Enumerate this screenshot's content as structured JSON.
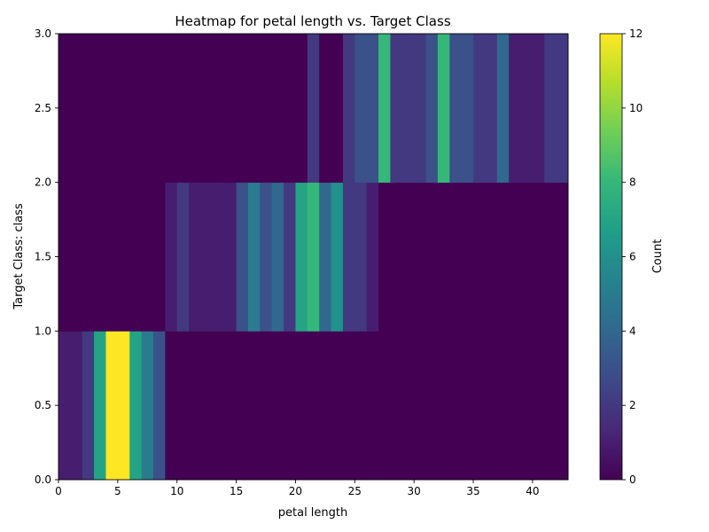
{
  "chart_data": {
    "type": "heatmap",
    "title": "Heatmap for petal length vs. Target Class",
    "xlabel": "petal length",
    "ylabel": "Target Class: class",
    "xlim": [
      0,
      43
    ],
    "ylim": [
      0,
      3
    ],
    "x_ticks": [
      "0",
      "5",
      "10",
      "15",
      "20",
      "25",
      "30",
      "35",
      "40"
    ],
    "y_ticks": [
      "0.0",
      "0.5",
      "1.0",
      "1.5",
      "2.0",
      "2.5",
      "3.0"
    ],
    "x_bin_width": 1,
    "y_bins": [
      [
        0,
        1
      ],
      [
        1,
        2
      ],
      [
        2,
        3
      ]
    ],
    "colormap": "viridis",
    "colormap_stops": [
      "#440154",
      "#482878",
      "#3e4989",
      "#31688e",
      "#26828e",
      "#1f9e89",
      "#35b779",
      "#6ece58",
      "#b5de2b",
      "#fde725"
    ],
    "colorbar": {
      "label": "Count",
      "range": [
        0,
        12
      ],
      "ticks": [
        "0",
        "2",
        "4",
        "6",
        "8",
        "10",
        "12"
      ]
    },
    "grid": false,
    "counts": [
      [
        1,
        1,
        2,
        7,
        12,
        12,
        7,
        5,
        3,
        0,
        0,
        0,
        0,
        0,
        0,
        0,
        0,
        0,
        0,
        0,
        0,
        0,
        0,
        0,
        0,
        0,
        0,
        0,
        0,
        0,
        0,
        0,
        0,
        0,
        0,
        0,
        0,
        0,
        0,
        0,
        0,
        0,
        0
      ],
      [
        0,
        0,
        0,
        0,
        0,
        0,
        0,
        0,
        0,
        1,
        2,
        1,
        1,
        1,
        1,
        3,
        5,
        3,
        4,
        2,
        7,
        8,
        4,
        6,
        2,
        2,
        1,
        0,
        0,
        0,
        0,
        0,
        0,
        0,
        0,
        0,
        0,
        0,
        0,
        0,
        0,
        0,
        0
      ],
      [
        0,
        0,
        0,
        0,
        0,
        0,
        0,
        0,
        0,
        0,
        0,
        0,
        0,
        0,
        0,
        0,
        0,
        0,
        0,
        0,
        0,
        2,
        0,
        0,
        2,
        3,
        3,
        8,
        2,
        2,
        2,
        3,
        8,
        3,
        3,
        2,
        2,
        4,
        1,
        1,
        1,
        2,
        2
      ]
    ]
  }
}
